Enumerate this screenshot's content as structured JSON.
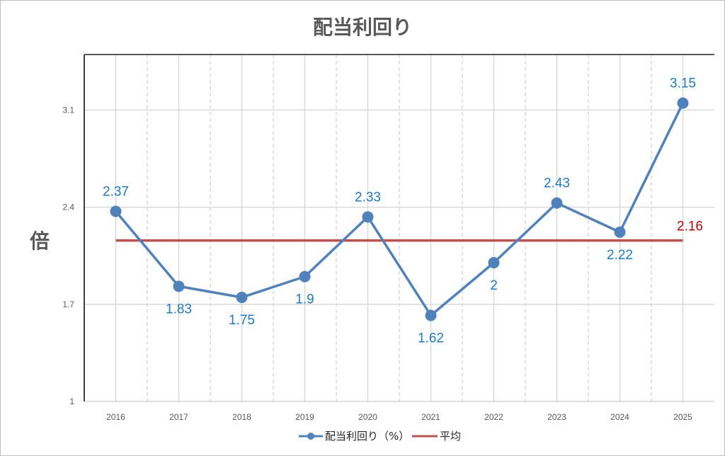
{
  "chart_data": {
    "type": "line",
    "title": "配当利回り",
    "ylabel": "倍",
    "xlabel": "",
    "categories": [
      "2016",
      "2017",
      "2018",
      "2019",
      "2020",
      "2021",
      "2022",
      "2023",
      "2024",
      "2025"
    ],
    "series": [
      {
        "name": "配当利回り（%）",
        "color": "#4f81bd",
        "values": [
          2.37,
          1.83,
          1.75,
          1.9,
          2.33,
          1.62,
          2,
          2.43,
          2.22,
          3.15
        ],
        "labels": [
          "2.37",
          "1.83",
          "1.75",
          "1.9",
          "2.33",
          "1.62",
          "2",
          "2.43",
          "2.22",
          "3.15"
        ],
        "label_pos": [
          "above",
          "below",
          "below",
          "below",
          "above",
          "below",
          "below",
          "above",
          "below",
          "above"
        ]
      },
      {
        "name": "平均",
        "color": "#c0504d",
        "value": 2.16,
        "label": "2.16"
      }
    ],
    "ylim": [
      1,
      3.5
    ],
    "yticks": [
      1,
      1.7,
      2.4,
      3.1
    ],
    "ytick_labels": [
      "1",
      "1.7",
      "2.4",
      "3.1"
    ],
    "grid": true,
    "legend": "bottom",
    "label_color": "#1f7bc8",
    "avg_label_color": "#c00000"
  }
}
